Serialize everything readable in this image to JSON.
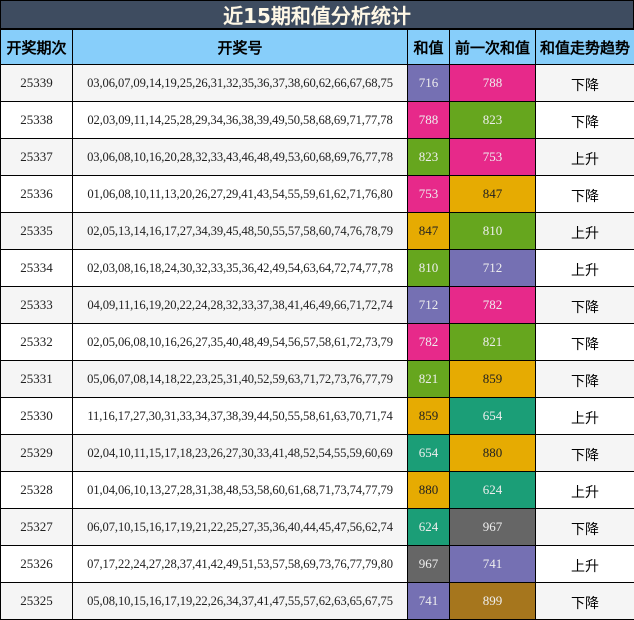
{
  "title": "近15期和值分析统计",
  "headers": [
    "开奖期次",
    "开奖号",
    "和值",
    "前一次和值",
    "和值走势趋势"
  ],
  "palette": {
    "purple": "#7570b3",
    "pink": "#e7298a",
    "green": "#66a61e",
    "gold": "#e6ab02",
    "teal": "#1b9e77",
    "gray": "#666666",
    "brown": "#a6761d"
  },
  "rows": [
    {
      "issue": "25339",
      "numbers": "03,06,07,09,14,19,25,26,31,32,35,36,37,38,60,62,66,67,68,75",
      "sum": "716",
      "sum_color": "#7570b3",
      "prev": "788",
      "prev_color": "#e7298a",
      "trend": "下降"
    },
    {
      "issue": "25338",
      "numbers": "02,03,09,11,14,25,28,29,34,36,38,39,49,50,58,68,69,71,77,78",
      "sum": "788",
      "sum_color": "#e7298a",
      "prev": "823",
      "prev_color": "#66a61e",
      "trend": "下降"
    },
    {
      "issue": "25337",
      "numbers": "03,06,08,10,16,20,28,32,33,43,46,48,49,53,60,68,69,76,77,78",
      "sum": "823",
      "sum_color": "#66a61e",
      "prev": "753",
      "prev_color": "#e7298a",
      "trend": "上升"
    },
    {
      "issue": "25336",
      "numbers": "01,06,08,10,11,13,20,26,27,29,41,43,54,55,59,61,62,71,76,80",
      "sum": "753",
      "sum_color": "#e7298a",
      "prev": "847",
      "prev_color": "#e6ab02",
      "trend": "下降"
    },
    {
      "issue": "25335",
      "numbers": "02,05,13,14,16,17,27,34,39,45,48,50,55,57,58,60,74,76,78,79",
      "sum": "847",
      "sum_color": "#e6ab02",
      "prev": "810",
      "prev_color": "#66a61e",
      "trend": "上升"
    },
    {
      "issue": "25334",
      "numbers": "02,03,08,16,18,24,30,32,33,35,36,42,49,54,63,64,72,74,77,78",
      "sum": "810",
      "sum_color": "#66a61e",
      "prev": "712",
      "prev_color": "#7570b3",
      "trend": "上升"
    },
    {
      "issue": "25333",
      "numbers": "04,09,11,16,19,20,22,24,28,32,33,37,38,41,46,49,66,71,72,74",
      "sum": "712",
      "sum_color": "#7570b3",
      "prev": "782",
      "prev_color": "#e7298a",
      "trend": "下降"
    },
    {
      "issue": "25332",
      "numbers": "02,05,06,08,10,16,26,27,35,40,48,49,54,56,57,58,61,72,73,79",
      "sum": "782",
      "sum_color": "#e7298a",
      "prev": "821",
      "prev_color": "#66a61e",
      "trend": "下降"
    },
    {
      "issue": "25331",
      "numbers": "05,06,07,08,14,18,22,23,25,31,40,52,59,63,71,72,73,76,77,79",
      "sum": "821",
      "sum_color": "#66a61e",
      "prev": "859",
      "prev_color": "#e6ab02",
      "trend": "下降"
    },
    {
      "issue": "25330",
      "numbers": "11,16,17,27,30,31,33,34,37,38,39,44,50,55,58,61,63,70,71,74",
      "sum": "859",
      "sum_color": "#e6ab02",
      "prev": "654",
      "prev_color": "#1b9e77",
      "trend": "上升"
    },
    {
      "issue": "25329",
      "numbers": "02,04,10,11,15,17,18,23,26,27,30,33,41,48,52,54,55,59,60,69",
      "sum": "654",
      "sum_color": "#1b9e77",
      "prev": "880",
      "prev_color": "#e6ab02",
      "trend": "下降"
    },
    {
      "issue": "25328",
      "numbers": "01,04,06,10,13,27,28,31,38,48,53,58,60,61,68,71,73,74,77,79",
      "sum": "880",
      "sum_color": "#e6ab02",
      "prev": "624",
      "prev_color": "#1b9e77",
      "trend": "上升"
    },
    {
      "issue": "25327",
      "numbers": "06,07,10,15,16,17,19,21,22,25,27,35,36,40,44,45,47,56,62,74",
      "sum": "624",
      "sum_color": "#1b9e77",
      "prev": "967",
      "prev_color": "#666666",
      "trend": "下降"
    },
    {
      "issue": "25326",
      "numbers": "07,17,22,24,27,28,37,41,42,49,51,53,57,58,69,73,76,77,79,80",
      "sum": "967",
      "sum_color": "#666666",
      "prev": "741",
      "prev_color": "#7570b3",
      "trend": "上升"
    },
    {
      "issue": "25325",
      "numbers": "05,08,10,15,16,17,19,22,26,34,37,41,47,55,57,62,63,65,67,75",
      "sum": "741",
      "sum_color": "#7570b3",
      "prev": "899",
      "prev_color": "#a6761d",
      "trend": "下降"
    }
  ]
}
